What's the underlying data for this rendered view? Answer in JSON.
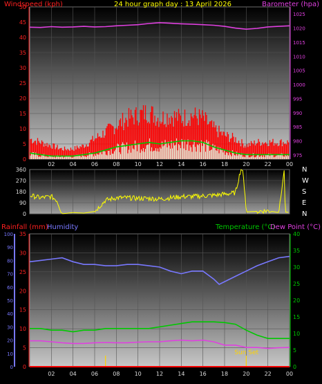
{
  "chart_data": [
    {
      "type": "line",
      "title": "24 hour graph day : 13 April 2026",
      "ylabel_left": "Windspeed (kph)",
      "ylabel_right": "Barometer (hpa)",
      "x_ticks": [
        "02",
        "04",
        "06",
        "08",
        "10",
        "12",
        "14",
        "16",
        "18",
        "20",
        "22",
        "00"
      ],
      "left_ticks": [
        0,
        5,
        10,
        15,
        20,
        25,
        30,
        35,
        40,
        45,
        50
      ],
      "right_ticks": [
        975,
        980,
        985,
        990,
        995,
        1000,
        1005,
        1010,
        1015,
        1020,
        1025
      ],
      "ylim_left": [
        0,
        50
      ],
      "ylim_right": [
        973.5,
        1027.5
      ],
      "grid": true,
      "colors": {
        "windspeed": "#ff0000",
        "wind_average": "#00c800",
        "wind_lull": "#e6ffe6",
        "barometer": "#e040e0"
      },
      "series": [
        {
          "name": "Barometer (hpa)",
          "axis": "right",
          "x": [
            0,
            1,
            2,
            3,
            4,
            5,
            6,
            7,
            8,
            9,
            10,
            11,
            12,
            13,
            14,
            15,
            16,
            17,
            18,
            19,
            20,
            21,
            22,
            23,
            24
          ],
          "values": [
            1020.3,
            1020.2,
            1020.5,
            1020.3,
            1020.4,
            1020.6,
            1020.4,
            1020.5,
            1020.8,
            1021.0,
            1021.2,
            1021.6,
            1021.9,
            1021.7,
            1021.5,
            1021.4,
            1021.2,
            1021.0,
            1020.6,
            1020.0,
            1019.6,
            1019.9,
            1020.4,
            1020.6,
            1020.8
          ]
        },
        {
          "name": "Windspeed (kph)",
          "axis": "left",
          "x": [
            0,
            1,
            2,
            3,
            4,
            5,
            6,
            7,
            8,
            9,
            10,
            11,
            12,
            13,
            14,
            15,
            16,
            17,
            18,
            19,
            20,
            21,
            22,
            23,
            24
          ],
          "values": [
            6,
            5,
            4,
            3,
            3,
            4,
            6,
            8,
            10,
            12,
            13,
            14,
            12,
            13,
            12,
            13,
            12,
            9,
            7,
            6,
            4,
            5,
            5,
            5,
            5
          ]
        },
        {
          "name": "Wind average",
          "axis": "left",
          "x": [
            0,
            1,
            2,
            3,
            4,
            5,
            6,
            7,
            8,
            9,
            10,
            11,
            12,
            13,
            14,
            15,
            16,
            17,
            18,
            19,
            20,
            21,
            22,
            23,
            24
          ],
          "values": [
            2,
            1.5,
            1,
            1,
            1,
            1.5,
            2,
            3,
            4,
            4.5,
            5,
            5.5,
            5,
            5.5,
            6,
            6,
            5.5,
            4,
            3,
            2,
            1.5,
            1.5,
            1.5,
            1.5,
            1.5
          ]
        }
      ]
    },
    {
      "type": "line",
      "title": "",
      "ylabel_right": "N W S E N",
      "right_labels": [
        "N",
        "W",
        "S",
        "E",
        "N"
      ],
      "x_ticks": [
        "02",
        "04",
        "06",
        "08",
        "10",
        "12",
        "14",
        "16",
        "18",
        "20",
        "22",
        "00"
      ],
      "left_ticks": [
        0,
        90,
        180,
        270,
        360
      ],
      "ylim": [
        0,
        360
      ],
      "grid": true,
      "colors": {
        "direction": "#ffff00"
      },
      "series": [
        {
          "name": "Wind direction",
          "x": [
            0,
            1,
            2,
            2.5,
            3,
            4,
            5,
            6,
            7,
            8,
            9,
            10,
            11,
            12,
            13,
            14,
            15,
            16,
            17,
            18,
            19,
            19.5,
            19.7,
            20,
            21,
            22,
            23,
            23.5,
            23.6,
            24
          ],
          "values": [
            150,
            130,
            140,
            110,
            0,
            10,
            5,
            20,
            110,
            130,
            130,
            125,
            125,
            120,
            130,
            140,
            140,
            145,
            150,
            160,
            170,
            360,
            350,
            15,
            20,
            25,
            10,
            360,
            15,
            10
          ]
        }
      ]
    },
    {
      "type": "line",
      "title": "",
      "ylabel_left": "Rainfall (mm)",
      "ylabel_left2": "Humidity",
      "ylabel_right": "Temperature (°C)",
      "ylabel_right2": "Dew Point (°C)",
      "x_ticks": [
        "02",
        "04",
        "06",
        "08",
        "10",
        "12",
        "14",
        "16",
        "18",
        "20",
        "22",
        "00"
      ],
      "humidity_ticks": [
        0,
        10,
        20,
        30,
        40,
        50,
        60,
        70,
        80,
        90,
        100
      ],
      "rain_ticks": [
        0,
        5,
        10,
        15,
        20,
        25,
        30,
        35
      ],
      "temp_ticks": [
        0,
        5,
        10,
        15,
        20,
        25,
        30,
        35,
        40
      ],
      "ylim_humidity": [
        0,
        100
      ],
      "ylim_rain": [
        0,
        35
      ],
      "ylim_temp": [
        0,
        40
      ],
      "grid": true,
      "annotation": "Sun Set",
      "colors": {
        "humidity": "#7878ff",
        "temperature": "#00c800",
        "dewpoint": "#e040e0",
        "rain": "#ff0000",
        "sun": "#ffd400"
      },
      "series": [
        {
          "name": "Humidity",
          "axis": "humidity",
          "x": [
            0,
            1,
            2,
            3,
            4,
            5,
            6,
            7,
            8,
            9,
            10,
            11,
            12,
            13,
            14,
            15,
            16,
            17,
            17.5,
            18,
            19,
            20,
            21,
            22,
            23,
            24
          ],
          "values": [
            79,
            80,
            81,
            82,
            79,
            77,
            77,
            76,
            76,
            77,
            77,
            76,
            75,
            72,
            70,
            72,
            72,
            66,
            62,
            64,
            68,
            72,
            76,
            79,
            82,
            83
          ]
        },
        {
          "name": "Temperature (°C)",
          "axis": "temp",
          "x": [
            0,
            1,
            2,
            3,
            4,
            5,
            6,
            7,
            8,
            9,
            10,
            11,
            12,
            13,
            14,
            15,
            16,
            17,
            18,
            19,
            20,
            21,
            22,
            23,
            24
          ],
          "values": [
            11.5,
            11.5,
            11,
            11,
            10.5,
            11,
            11,
            11.5,
            11.5,
            11.5,
            11.5,
            11.5,
            12,
            12.5,
            13,
            13.5,
            13.5,
            13.5,
            13.3,
            12.8,
            11,
            9.5,
            8.5,
            8.5,
            8.5
          ]
        },
        {
          "name": "Dew Point (°C)",
          "axis": "temp",
          "x": [
            0,
            1,
            2,
            3,
            4,
            5,
            6,
            7,
            8,
            9,
            10,
            11,
            12,
            13,
            14,
            15,
            16,
            17,
            18,
            19,
            20,
            21,
            22,
            23,
            24
          ],
          "values": [
            7.8,
            7.8,
            7.5,
            7.2,
            7.0,
            7.0,
            7.2,
            7.3,
            7.2,
            7.2,
            7.4,
            7.5,
            7.5,
            7.8,
            8.0,
            7.8,
            8.0,
            7.5,
            6.5,
            6.5,
            5.8,
            5.8,
            5.5,
            5.7,
            5.8
          ]
        },
        {
          "name": "Rainfall (mm)",
          "axis": "rain",
          "x": [
            0,
            24
          ],
          "values": [
            0,
            0
          ]
        }
      ],
      "sun_markers": [
        7,
        20
      ]
    }
  ]
}
